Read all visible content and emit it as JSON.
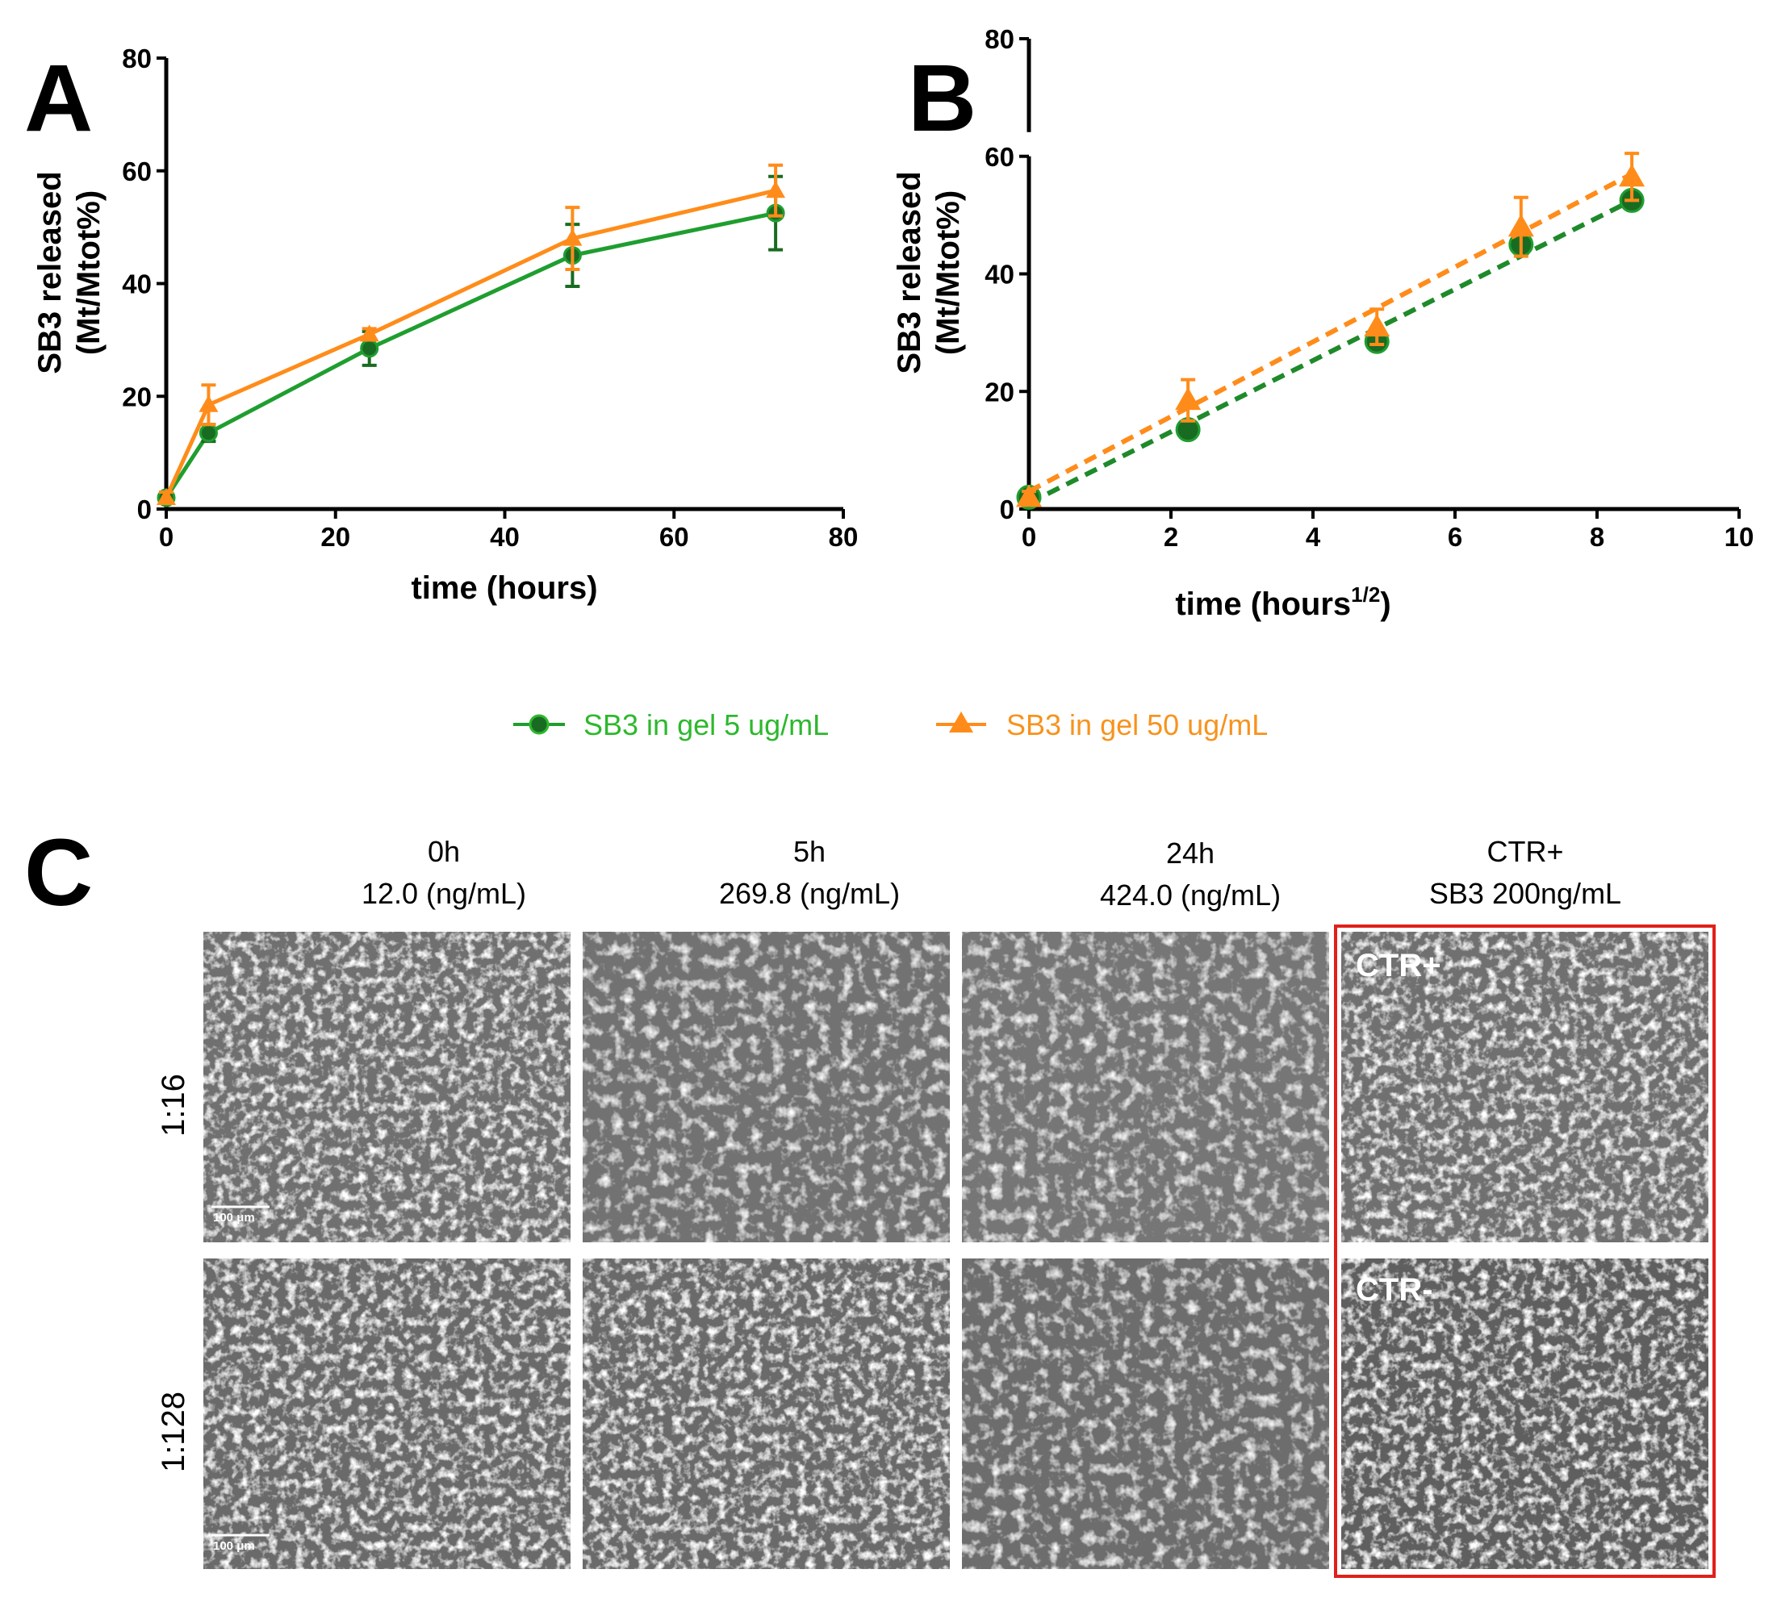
{
  "colors": {
    "series_5": "#1f9e2f",
    "series_5_marker": "#1a6b22",
    "series_50": "#ff8c1a",
    "series_50_light": "#ffb27a",
    "legend_5_text": "#2db82d",
    "legend_50_text": "#f7931e",
    "highlight_box": "#e0201b",
    "micrograph_bg": "#6f6f6f"
  },
  "chart_data": [
    {
      "panel": "A",
      "type": "line",
      "title": "",
      "xlabel": "time (hours)",
      "ylabel_line1": "SB3 released",
      "ylabel_line2": "(Mt/Mtot%)",
      "xlim": [
        0,
        80
      ],
      "ylim": [
        0,
        80
      ],
      "xticks": [
        "0",
        "20",
        "40",
        "60",
        "80"
      ],
      "yticks": [
        "0",
        "20",
        "40",
        "60",
        "80"
      ],
      "grid": false,
      "series": [
        {
          "name": "SB3 in gel 5 ug/mL",
          "marker": "circle",
          "dashed": false,
          "x": [
            0,
            5,
            24,
            48,
            72
          ],
          "y": [
            2,
            13.5,
            28.5,
            45,
            52.5
          ],
          "err": [
            1,
            1.5,
            3,
            5.5,
            6.5
          ]
        },
        {
          "name": "SB3 in gel 50 ug/mL",
          "marker": "triangle",
          "dashed": false,
          "x": [
            0,
            5,
            24,
            48,
            72
          ],
          "y": [
            2,
            18.5,
            31,
            48,
            56.5
          ],
          "err": [
            1,
            3.5,
            1,
            5.5,
            4.5
          ]
        }
      ]
    },
    {
      "panel": "B",
      "type": "line",
      "title": "",
      "xlabel": "time (hours",
      "xlabel_superscript": "1/2",
      "xlabel_close": ")",
      "ylabel_line1": "SB3 released",
      "ylabel_line2": "(Mt/Mtot%)",
      "xlim": [
        0,
        10
      ],
      "ylim": [
        0,
        80
      ],
      "axis_break": [
        60,
        80
      ],
      "xticks": [
        "0",
        "2",
        "4",
        "6",
        "8",
        "10"
      ],
      "yticks": [
        "0",
        "20",
        "40",
        "60",
        "80"
      ],
      "grid": false,
      "series": [
        {
          "name": "SB3 in gel 5 ug/mL",
          "marker": "circle",
          "dashed": true,
          "x": [
            0,
            2.24,
            4.9,
            6.93,
            8.49
          ],
          "y": [
            2,
            13.5,
            28.5,
            45,
            52.5
          ],
          "err": [
            0,
            0,
            0,
            0,
            0
          ],
          "fit": [
            [
              0,
              1
            ],
            [
              8.49,
              52.5
            ]
          ]
        },
        {
          "name": "SB3 in gel 50 ug/mL",
          "marker": "triangle",
          "dashed": true,
          "x": [
            0,
            2.24,
            4.9,
            6.93,
            8.49
          ],
          "y": [
            2,
            18.5,
            31,
            48,
            56.5
          ],
          "err": [
            1,
            3.5,
            3,
            5,
            4
          ],
          "fit": [
            [
              0,
              3
            ],
            [
              8.49,
              57
            ]
          ]
        }
      ]
    }
  ],
  "legend": {
    "items": [
      {
        "label": "SB3 in gel 5 ug/mL"
      },
      {
        "label": "SB3 in gel 50 ug/mL"
      }
    ]
  },
  "panel_c": {
    "letter": "C",
    "columns": [
      {
        "line1": "0h",
        "line2": "12.0 (ng/mL)"
      },
      {
        "line1": "5h",
        "line2": "269.8 (ng/mL)"
      },
      {
        "line1": "24h",
        "line2": "424.0 (ng/mL)"
      },
      {
        "line1": "CTR+",
        "line2": "SB3 200ng/mL"
      }
    ],
    "rows": [
      "1:16",
      "1:128"
    ],
    "ctr_pos_label": "CTR+",
    "ctr_neg_label": "CTR-",
    "scale_bar": "100 μm"
  }
}
